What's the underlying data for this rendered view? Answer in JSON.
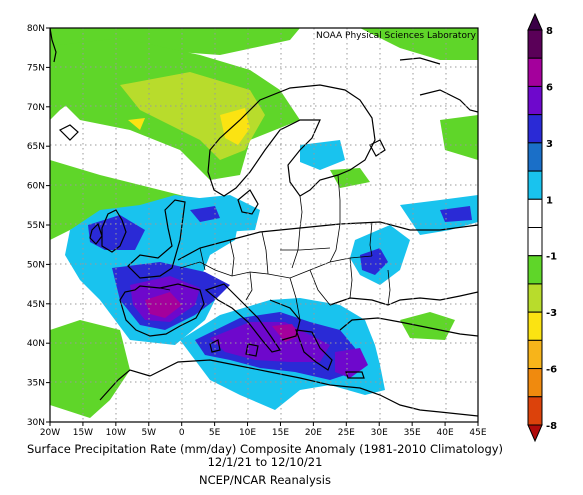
{
  "map": {
    "attribution": "NOAA Physical Sciences Laboratory",
    "lat_labels": [
      "80N",
      "75N",
      "70N",
      "65N",
      "60N",
      "55N",
      "50N",
      "45N",
      "40N",
      "35N",
      "30N"
    ],
    "lon_labels": [
      "20W",
      "15W",
      "10W",
      "5W",
      "0",
      "5E",
      "10E",
      "15E",
      "20E",
      "25E",
      "30E",
      "35E",
      "40E",
      "45E"
    ],
    "extent": {
      "lon": [
        -20,
        45
      ],
      "lat": [
        30,
        80
      ]
    }
  },
  "colorbar": {
    "labels": [
      "8",
      "6",
      "3",
      "1",
      "-1",
      "-3",
      "-6",
      "-8"
    ],
    "colors": [
      "#5a0058",
      "#a4009c",
      "#6e08cc",
      "#2a2ad6",
      "#1a6fc8",
      "#19c3ee",
      "#ffffff",
      "#ffffff",
      "#5fd629",
      "#b8dc2c",
      "#fbe312",
      "#f7b41a",
      "#f08a0e",
      "#dc420b"
    ],
    "over_color": "#3a0046",
    "under_color": "#b00a0a"
  },
  "caption": {
    "title": "Surface Precipitation Rate (mm/day) Composite Anomaly (1981-2010 Climatology)",
    "dates": "12/1/21   to 12/10/21",
    "source": "NCEP/NCAR Reanalysis"
  }
}
